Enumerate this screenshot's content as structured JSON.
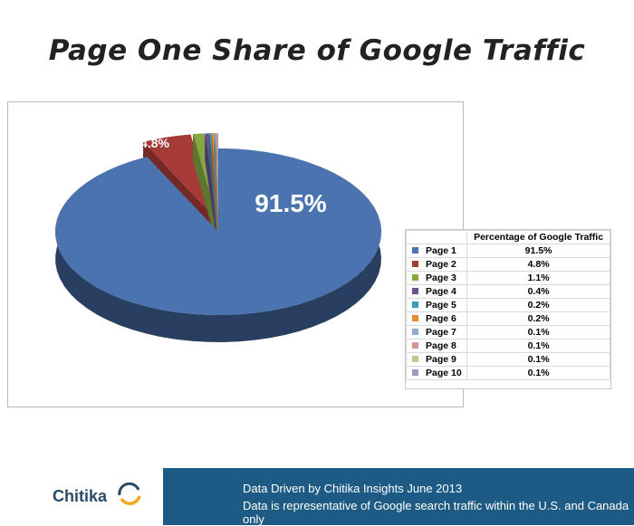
{
  "title": "Page One Share of Google Traffic",
  "chart_data": {
    "type": "pie",
    "categories": [
      "Page 1",
      "Page 2",
      "Page 3",
      "Page 4",
      "Page 5",
      "Page 6",
      "Page 7",
      "Page 8",
      "Page 9",
      "Page 10"
    ],
    "values": [
      91.5,
      4.8,
      1.1,
      0.4,
      0.2,
      0.2,
      0.1,
      0.1,
      0.1,
      0.1
    ],
    "value_labels": [
      "91.5%",
      "4.8%",
      "1.1%",
      "0.4%",
      "0.2%",
      "0.2%",
      "0.1%",
      "0.1%",
      "0.1%",
      "0.1%"
    ],
    "colors": [
      "#4a73b0",
      "#a63a37",
      "#86a843",
      "#6a4f92",
      "#3a9bb5",
      "#e58a2f",
      "#92aad4",
      "#d49593",
      "#b7cc8f",
      "#a796c1"
    ],
    "table_header": "Percentage of Google Traffic",
    "legend": "right"
  },
  "footer": {
    "line1": "Data Driven by Chitika Insights June 2013",
    "line2": "Data is representative of Google search traffic within the U.S. and Canada only"
  },
  "logo": {
    "text": "Chitika"
  }
}
